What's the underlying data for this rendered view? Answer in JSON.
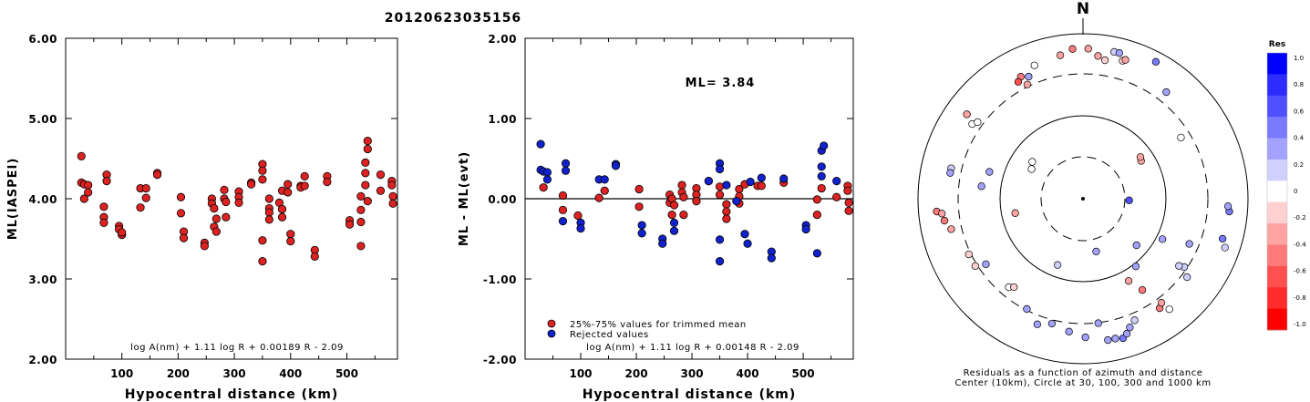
{
  "title": "20120623035156",
  "charts": [
    {
      "type": "scatter",
      "ylabel": "ML(IASPEI)",
      "xlabel": "Hypocentral distance (km)",
      "xlim": [
        0,
        590
      ],
      "ylim": [
        2.0,
        6.0
      ],
      "xticks": [
        100,
        200,
        300,
        400,
        500
      ],
      "yticks": [
        "2.00",
        "3.00",
        "4.00",
        "5.00",
        "6.00"
      ],
      "formula": "log A(nm) + 1.11 log R + 0.00189 R - 2.09",
      "point_color": "#dd2222",
      "points": [
        [
          28,
          4.53
        ],
        [
          28,
          4.2
        ],
        [
          33,
          4.18
        ],
        [
          33,
          4.0
        ],
        [
          40,
          4.17
        ],
        [
          40,
          4.08
        ],
        [
          68,
          3.9
        ],
        [
          68,
          3.77
        ],
        [
          68,
          3.7
        ],
        [
          73,
          4.3
        ],
        [
          73,
          4.22
        ],
        [
          95,
          3.66
        ],
        [
          95,
          3.62
        ],
        [
          100,
          3.55
        ],
        [
          100,
          3.58
        ],
        [
          133,
          4.13
        ],
        [
          133,
          3.89
        ],
        [
          143,
          4.13
        ],
        [
          143,
          4.01
        ],
        [
          163,
          4.32
        ],
        [
          163,
          4.3
        ],
        [
          205,
          4.02
        ],
        [
          205,
          3.82
        ],
        [
          210,
          3.59
        ],
        [
          210,
          3.51
        ],
        [
          247,
          3.45
        ],
        [
          247,
          3.41
        ],
        [
          260,
          4.0
        ],
        [
          260,
          3.94
        ],
        [
          264,
          3.88
        ],
        [
          264,
          3.65
        ],
        [
          268,
          3.75
        ],
        [
          268,
          3.59
        ],
        [
          282,
          4.11
        ],
        [
          282,
          4.0
        ],
        [
          285,
          3.96
        ],
        [
          285,
          3.77
        ],
        [
          308,
          4.09
        ],
        [
          308,
          4.02
        ],
        [
          308,
          3.95
        ],
        [
          330,
          4.2
        ],
        [
          330,
          4.18
        ],
        [
          350,
          4.43
        ],
        [
          350,
          4.35
        ],
        [
          350,
          4.24
        ],
        [
          350,
          3.48
        ],
        [
          350,
          3.22
        ],
        [
          362,
          4.0
        ],
        [
          362,
          3.88
        ],
        [
          362,
          3.83
        ],
        [
          362,
          3.74
        ],
        [
          380,
          3.95
        ],
        [
          385,
          4.1
        ],
        [
          385,
          3.87
        ],
        [
          385,
          3.77
        ],
        [
          395,
          4.18
        ],
        [
          395,
          4.08
        ],
        [
          400,
          3.56
        ],
        [
          400,
          3.47
        ],
        [
          418,
          4.16
        ],
        [
          418,
          4.14
        ],
        [
          425,
          4.28
        ],
        [
          425,
          4.16
        ],
        [
          443,
          3.36
        ],
        [
          443,
          3.28
        ],
        [
          465,
          4.28
        ],
        [
          465,
          4.21
        ],
        [
          505,
          3.73
        ],
        [
          505,
          3.68
        ],
        [
          525,
          4.03
        ],
        [
          525,
          3.86
        ],
        [
          525,
          3.71
        ],
        [
          525,
          3.41
        ],
        [
          533,
          4.45
        ],
        [
          533,
          4.32
        ],
        [
          533,
          4.17
        ],
        [
          537,
          4.72
        ],
        [
          537,
          4.62
        ],
        [
          537,
          3.97
        ],
        [
          560,
          4.3
        ],
        [
          560,
          4.1
        ],
        [
          580,
          4.22
        ],
        [
          580,
          4.17
        ],
        [
          582,
          4.03
        ],
        [
          582,
          3.94
        ]
      ]
    },
    {
      "type": "scatter",
      "ylabel": "ML - ML(evt)",
      "xlabel": "Hypocentral distance (km)",
      "xlim": [
        0,
        590
      ],
      "ylim": [
        -2.0,
        2.0
      ],
      "xticks": [
        100,
        200,
        300,
        400,
        500
      ],
      "yticks": [
        "-2.00",
        "-1.00",
        "0.00",
        "1.00",
        "2.00"
      ],
      "reference_line": 0.0,
      "ml_label": "ML= 3.84",
      "legend": [
        "25%-75% values for trimmed mean",
        "Rejected values"
      ],
      "formula": "log A(nm) + 1.11 log R + 0.00148 R - 2.09",
      "series": [
        {
          "name": "25%-75% values for trimmed mean",
          "color": "#dd2222",
          "points": [
            [
              33,
              0.14
            ],
            [
              68,
              0.04
            ],
            [
              68,
              -0.14
            ],
            [
              95,
              -0.21
            ],
            [
              133,
              0.01
            ],
            [
              143,
              0.1
            ],
            [
              205,
              0.12
            ],
            [
              205,
              -0.1
            ],
            [
              260,
              0.05
            ],
            [
              260,
              -0.05
            ],
            [
              264,
              0.0
            ],
            [
              264,
              -0.2
            ],
            [
              268,
              -0.08
            ],
            [
              282,
              0.17
            ],
            [
              282,
              0.08
            ],
            [
              285,
              0.02
            ],
            [
              285,
              -0.2
            ],
            [
              308,
              0.13
            ],
            [
              308,
              0.05
            ],
            [
              308,
              -0.03
            ],
            [
              330,
              0.22
            ],
            [
              350,
              0.15
            ],
            [
              350,
              0.05
            ],
            [
              362,
              -0.07
            ],
            [
              362,
              -0.16
            ],
            [
              362,
              -0.25
            ],
            [
              385,
              0.12
            ],
            [
              385,
              0.03
            ],
            [
              385,
              -0.06
            ],
            [
              395,
              0.18
            ],
            [
              418,
              0.16
            ],
            [
              425,
              0.16
            ],
            [
              465,
              0.2
            ],
            [
              525,
              -0.01
            ],
            [
              525,
              -0.2
            ],
            [
              533,
              0.13
            ],
            [
              560,
              0.02
            ],
            [
              580,
              0.16
            ],
            [
              580,
              0.1
            ],
            [
              582,
              -0.05
            ],
            [
              582,
              -0.15
            ]
          ]
        },
        {
          "name": "Rejected values",
          "color": "#1122cc",
          "points": [
            [
              28,
              0.68
            ],
            [
              28,
              0.36
            ],
            [
              33,
              0.34
            ],
            [
              40,
              0.33
            ],
            [
              40,
              0.24
            ],
            [
              68,
              -0.28
            ],
            [
              73,
              0.44
            ],
            [
              73,
              0.35
            ],
            [
              100,
              -0.3
            ],
            [
              100,
              -0.37
            ],
            [
              133,
              0.24
            ],
            [
              143,
              0.24
            ],
            [
              163,
              0.43
            ],
            [
              163,
              0.41
            ],
            [
              210,
              -0.33
            ],
            [
              210,
              -0.43
            ],
            [
              247,
              -0.5
            ],
            [
              247,
              -0.56
            ],
            [
              268,
              -0.3
            ],
            [
              268,
              -0.4
            ],
            [
              330,
              0.22
            ],
            [
              350,
              0.44
            ],
            [
              350,
              0.37
            ],
            [
              350,
              -0.51
            ],
            [
              350,
              -0.78
            ],
            [
              362,
              0.17
            ],
            [
              380,
              -0.03
            ],
            [
              395,
              -0.44
            ],
            [
              400,
              -0.56
            ],
            [
              405,
              0.21
            ],
            [
              425,
              0.26
            ],
            [
              443,
              -0.66
            ],
            [
              443,
              -0.74
            ],
            [
              465,
              0.25
            ],
            [
              505,
              -0.33
            ],
            [
              505,
              -0.38
            ],
            [
              525,
              -0.68
            ],
            [
              533,
              0.6
            ],
            [
              533,
              0.4
            ],
            [
              533,
              0.28
            ],
            [
              537,
              0.66
            ],
            [
              560,
              0.22
            ]
          ]
        }
      ]
    }
  ],
  "polar": {
    "north_label": "N",
    "caption_line1": "Residuals as a function of azimuth and distance",
    "caption_line2": "Center (10km), Circle at 30, 100, 300 and 1000 km",
    "colorbar_title": "Res",
    "colorbar_ticks": [
      "1.0",
      "0.8",
      "0.6",
      "0.4",
      "0.2",
      "0",
      "-0.2",
      "-0.4",
      "-0.6",
      "-0.8",
      "-1.0"
    ],
    "colorbar_colors": [
      "#0000ff",
      "#2c2cff",
      "#5050ff",
      "#7a7aff",
      "#a3a3ff",
      "#d0d0ff",
      "#ffffff",
      "#ffd0d0",
      "#ffa3a3",
      "#ff7a7a",
      "#ff5050",
      "#ff2c2c",
      "#ff0000"
    ],
    "stations_note": "az in degrees clockwise from north; radius as fraction of outer circle; res residual",
    "stations": [
      {
        "az": 351,
        "r": 0.88,
        "res": -0.3
      },
      {
        "az": 356,
        "r": 0.91,
        "res": -0.5
      },
      {
        "az": 2,
        "r": 0.91,
        "res": -0.4
      },
      {
        "az": 6,
        "r": 0.87,
        "res": -0.3
      },
      {
        "az": 9,
        "r": 0.85,
        "res": -0.2
      },
      {
        "az": 12,
        "r": 0.91,
        "res": 0.2
      },
      {
        "az": 14,
        "r": 0.91,
        "res": 0.3
      },
      {
        "az": 16,
        "r": 0.87,
        "res": -0.2
      },
      {
        "az": 17,
        "r": 0.88,
        "res": -0.3
      },
      {
        "az": 28,
        "r": 0.94,
        "res": 0.5
      },
      {
        "az": 336,
        "r": 0.81,
        "res": 0.3
      },
      {
        "az": 333,
        "r": 0.83,
        "res": -0.5
      },
      {
        "az": 331,
        "r": 0.81,
        "res": -0.6
      },
      {
        "az": 334,
        "r": 0.77,
        "res": -0.3
      },
      {
        "az": 340,
        "r": 0.86,
        "res": 0.0
      },
      {
        "az": 304,
        "r": 0.81,
        "res": 0.0
      },
      {
        "az": 306,
        "r": 0.79,
        "res": 0.0
      },
      {
        "az": 306,
        "r": 0.87,
        "res": -0.3
      },
      {
        "az": 283,
        "r": 0.82,
        "res": 0.2
      },
      {
        "az": 281,
        "r": 0.82,
        "res": 0.3
      },
      {
        "az": 277,
        "r": 0.62,
        "res": 0.3
      },
      {
        "az": 265,
        "r": 0.89,
        "res": -0.5
      },
      {
        "az": 264,
        "r": 0.86,
        "res": -0.4
      },
      {
        "az": 261,
        "r": 0.85,
        "res": -0.5
      },
      {
        "az": 257,
        "r": 0.82,
        "res": -0.3
      },
      {
        "az": 244,
        "r": 0.77,
        "res": -0.2
      },
      {
        "az": 236,
        "r": 0.71,
        "res": 0.3
      },
      {
        "az": 238,
        "r": 0.77,
        "res": -0.1
      },
      {
        "az": 220,
        "r": 0.7,
        "res": 0.0
      },
      {
        "az": 218,
        "r": 0.68,
        "res": -0.2
      },
      {
        "az": 207,
        "r": 0.75,
        "res": 0.3
      },
      {
        "az": 194,
        "r": 0.78,
        "res": 0.4
      },
      {
        "az": 186,
        "r": 0.81,
        "res": 0.3
      },
      {
        "az": 173,
        "r": 0.76,
        "res": 0.3
      },
      {
        "az": 170,
        "r": 0.87,
        "res": 0.4
      },
      {
        "az": 167,
        "r": 0.87,
        "res": 0.3
      },
      {
        "az": 164,
        "r": 0.88,
        "res": 0.5
      },
      {
        "az": 162,
        "r": 0.86,
        "res": 0.3
      },
      {
        "az": 160,
        "r": 0.83,
        "res": 0.3
      },
      {
        "az": 157,
        "r": 0.8,
        "res": 0.2
      },
      {
        "az": 145,
        "r": 0.81,
        "res": -0.5
      },
      {
        "az": 142,
        "r": 0.85,
        "res": 0.0
      },
      {
        "az": 143,
        "r": 0.79,
        "res": -0.4
      },
      {
        "az": 147,
        "r": 0.66,
        "res": -0.5
      },
      {
        "az": 151,
        "r": 0.57,
        "res": -0.4
      },
      {
        "az": 142,
        "r": 0.52,
        "res": 0.3
      },
      {
        "az": 127,
        "r": 0.79,
        "res": 0.2
      },
      {
        "az": 124,
        "r": 0.74,
        "res": 0.1
      },
      {
        "az": 117,
        "r": 0.54,
        "res": 0.4
      },
      {
        "az": 109,
        "r": 0.91,
        "res": 0.2
      },
      {
        "az": 106,
        "r": 0.88,
        "res": 0.5
      },
      {
        "az": 95,
        "r": 0.89,
        "res": 0.5
      },
      {
        "az": 93,
        "r": 0.88,
        "res": 0.4
      },
      {
        "az": 92,
        "r": 0.28,
        "res": 0.6
      },
      {
        "az": 166,
        "r": 0.33,
        "res": 0.3
      },
      {
        "az": 201,
        "r": 0.43,
        "res": 0.1
      },
      {
        "az": 258,
        "r": 0.42,
        "res": -0.4
      },
      {
        "az": 300,
        "r": 0.36,
        "res": 0.0
      },
      {
        "az": 306,
        "r": 0.38,
        "res": 0.0
      },
      {
        "az": 286,
        "r": 0.59,
        "res": 0.3
      },
      {
        "az": 57,
        "r": 0.42,
        "res": -0.3
      },
      {
        "az": 54,
        "r": 0.43,
        "res": -0.3
      },
      {
        "az": 58,
        "r": 0.7,
        "res": 0.0
      },
      {
        "az": 38,
        "r": 0.82,
        "res": 0.4
      },
      {
        "az": 131,
        "r": 0.43,
        "res": 0.4
      },
      {
        "az": 125,
        "r": 0.71,
        "res": 0.1
      },
      {
        "az": 113,
        "r": 0.7,
        "res": 0.3
      },
      {
        "az": 200,
        "r": 0.81,
        "res": 0.3
      },
      {
        "az": 179,
        "r": 0.84,
        "res": 0.3
      }
    ]
  }
}
